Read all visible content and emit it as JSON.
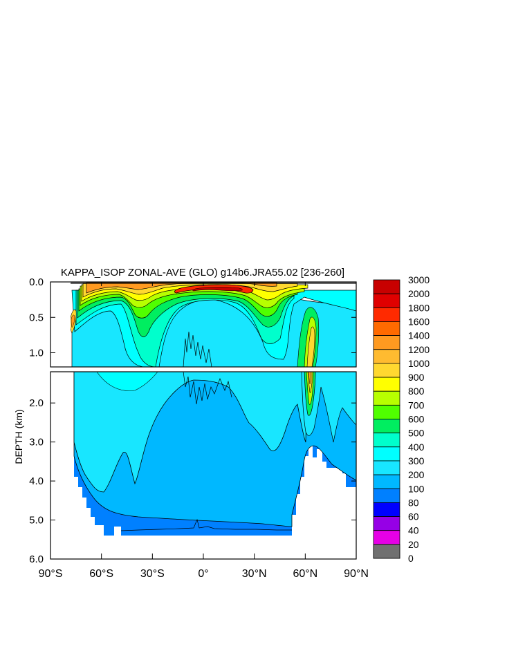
{
  "chart_data": {
    "type": "heatmap",
    "title": "KAPPA_ISOP ZONAL-AVE (GLO) g14b6.JRA55.02 [236-260]",
    "xlabel": "",
    "ylabel": "DEPTH (km)",
    "x_ticks": [
      {
        "value": -90,
        "label": "90°S"
      },
      {
        "value": -60,
        "label": "60°S"
      },
      {
        "value": -30,
        "label": "30°S"
      },
      {
        "value": 0,
        "label": "0°"
      },
      {
        "value": 30,
        "label": "30°N"
      },
      {
        "value": 60,
        "label": "60°N"
      },
      {
        "value": 90,
        "label": "90°N"
      }
    ],
    "upper_panel": {
      "ylim": [
        0.0,
        1.2
      ],
      "y_ticks": [
        "0.0",
        "0.5",
        "1.0"
      ],
      "y_values": [
        0.0,
        0.5,
        1.0
      ]
    },
    "lower_panel": {
      "ylim": [
        1.2,
        6.0
      ],
      "y_ticks": [
        "2.0",
        "3.0",
        "4.0",
        "5.0",
        "6.0"
      ],
      "y_values": [
        2.0,
        3.0,
        4.0,
        5.0,
        6.0
      ]
    },
    "colorbar": {
      "levels": [
        "3000",
        "2000",
        "1800",
        "1600",
        "1400",
        "1200",
        "1000",
        "900",
        "800",
        "700",
        "600",
        "500",
        "400",
        "300",
        "200",
        "100",
        "80",
        "60",
        "40",
        "20",
        "0"
      ],
      "colors": [
        "#c80000",
        "#e00000",
        "#ff2a00",
        "#ff6a00",
        "#ff9a20",
        "#ffbb30",
        "#ffd830",
        "#ffff00",
        "#b8ff00",
        "#50ff00",
        "#00ee60",
        "#00ffcc",
        "#00ffff",
        "#18e6ff",
        "#00b8ff",
        "#0080ff",
        "#0000ff",
        "#9600e6",
        "#e600e6",
        "#d2d2d2",
        "#707070"
      ]
    },
    "ocean_bottom_km": {
      "lat": [
        -78,
        -75,
        -72,
        -68,
        -65,
        -60,
        -55,
        -50,
        -45,
        -40,
        -30,
        -20,
        -10,
        0,
        10,
        20,
        30,
        40,
        50,
        53,
        56,
        60,
        62,
        64,
        66,
        68,
        70,
        72,
        75,
        80,
        85,
        90
      ],
      "depth": [
        0.75,
        4.0,
        4.6,
        4.95,
        5.15,
        5.35,
        5.35,
        5.35,
        5.25,
        5.25,
        5.25,
        5.25,
        5.25,
        5.2,
        5.25,
        5.25,
        5.25,
        5.3,
        5.3,
        4.5,
        4.0,
        3.3,
        3.2,
        3.3,
        3.55,
        3.55,
        3.4,
        3.4,
        3.6,
        3.9,
        4.1,
        4.1
      ]
    }
  }
}
